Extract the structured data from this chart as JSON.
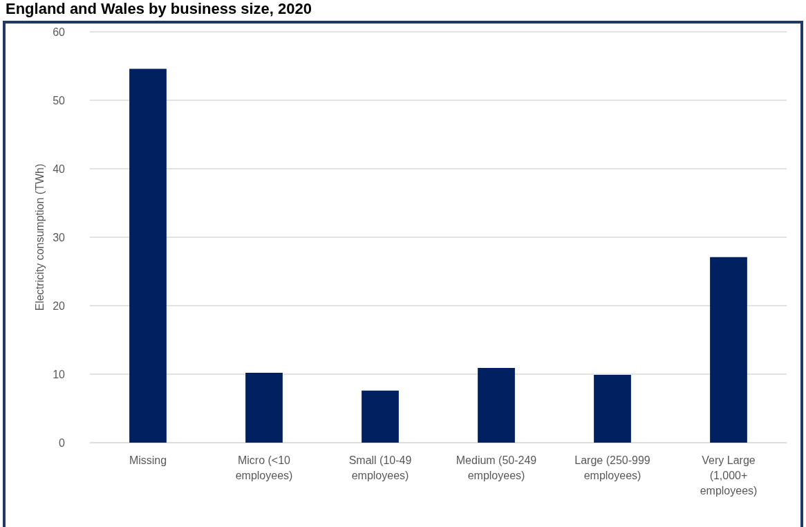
{
  "chart_data": {
    "type": "bar",
    "title": "England and Wales by business size, 2020",
    "ylabel": "Electricity consumption (TWh)",
    "categories": [
      "Missing",
      "Micro (<10 employees)",
      "Small (10-49 employees)",
      "Medium (50-249 employees)",
      "Large (250-999 employees)",
      "Very Large (1,000+ employees)"
    ],
    "values": [
      54.6,
      10.2,
      7.6,
      10.9,
      9.9,
      27.1
    ],
    "color": "#002060",
    "ylim": [
      0,
      60
    ],
    "yticks": [
      0,
      10,
      20,
      30,
      40,
      50,
      60
    ],
    "grid": "y"
  }
}
